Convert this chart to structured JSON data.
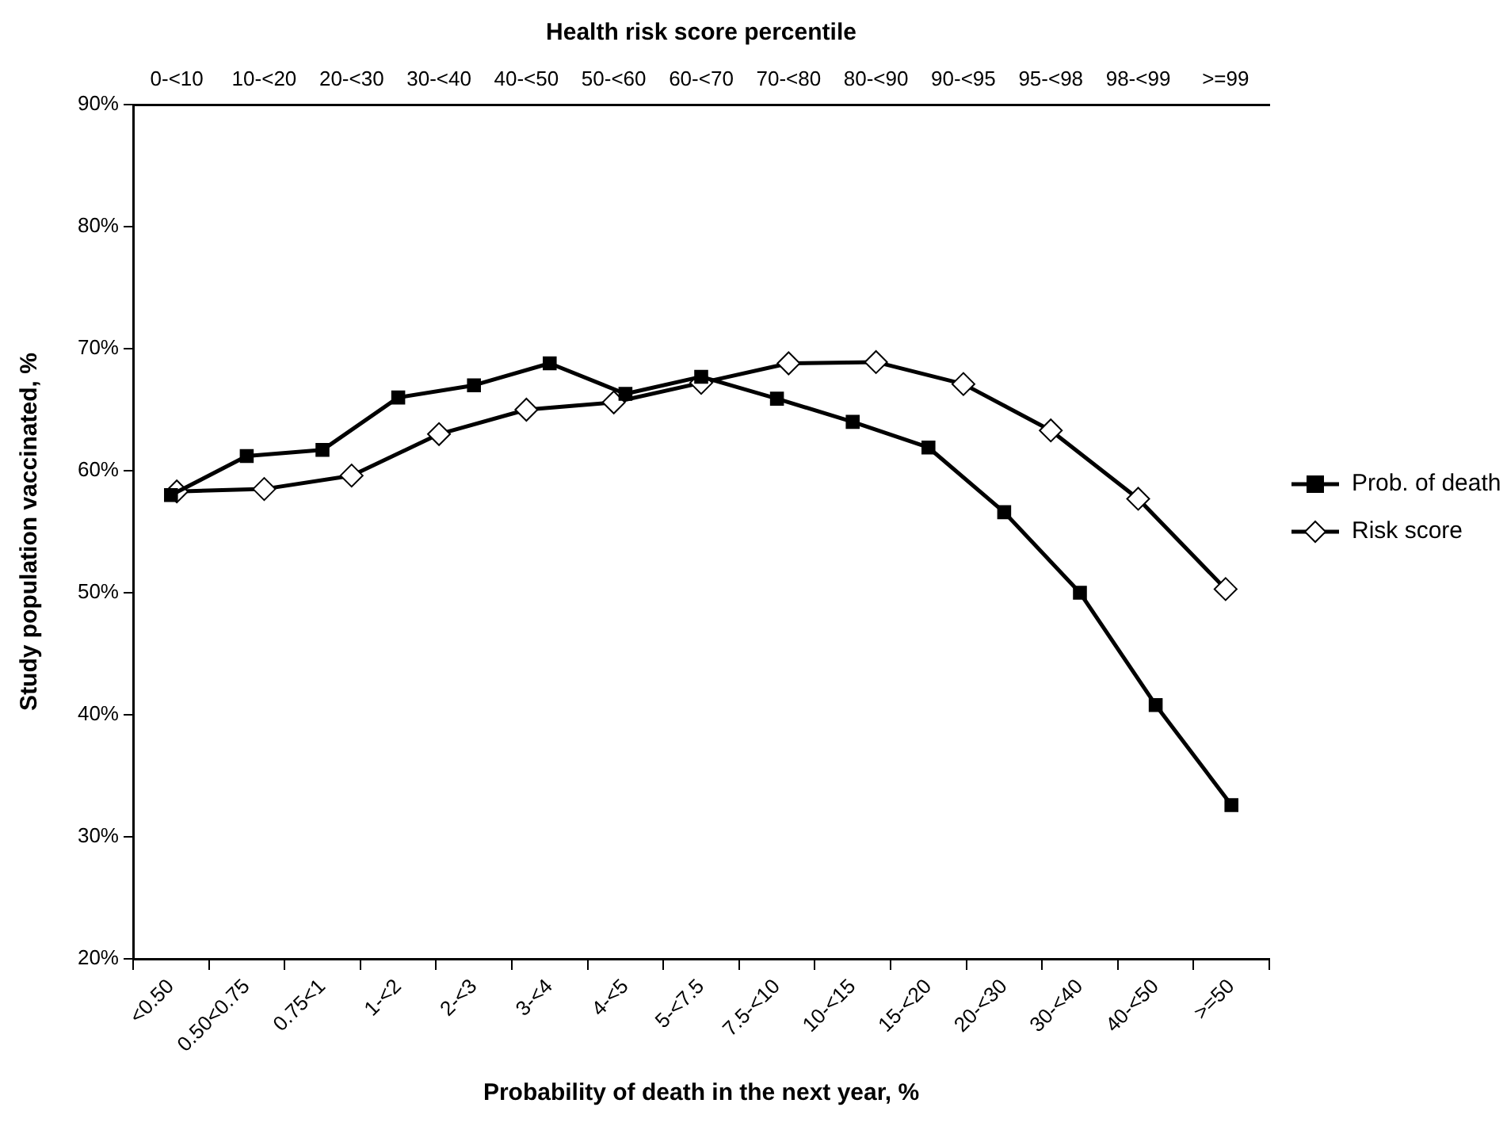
{
  "chart_data": [
    {
      "type": "line",
      "xlabel": "Probability of death in the next year, %",
      "ylabel": "Study population vaccinated, %",
      "categories": [
        "<0.50",
        "0.50<0.75",
        "0.75<1",
        "1-<2",
        "2-<3",
        "3-<4",
        "4-<5",
        "5-<7.5",
        "7.5-<10",
        "10-<15",
        "15-<20",
        "20-<30",
        "30-<40",
        "40-<50",
        ">=50"
      ],
      "series": [
        {
          "name": "Prob. of death",
          "color": "#000000",
          "marker": "square",
          "values": [
            58.0,
            61.2,
            61.7,
            66.0,
            67.0,
            68.8,
            66.3,
            67.7,
            65.9,
            64.0,
            61.9,
            56.6,
            50.0,
            40.8,
            32.6
          ]
        }
      ],
      "ylim": [
        20,
        90
      ],
      "yticks": [
        {
          "value": 20,
          "label": "20%"
        },
        {
          "value": 30,
          "label": "30%"
        },
        {
          "value": 40,
          "label": "40%"
        },
        {
          "value": 50,
          "label": "50%"
        },
        {
          "value": 60,
          "label": "60%"
        },
        {
          "value": 70,
          "label": "70%"
        },
        {
          "value": 80,
          "label": "80%"
        },
        {
          "value": 90,
          "label": "90%"
        }
      ],
      "grid": false,
      "legend": "right",
      "line_style": "solid"
    },
    {
      "type": "line",
      "x2label": "Health risk score percentile",
      "categories": [
        "0-<10",
        "10-<20",
        "20-<30",
        "30-<40",
        "40-<50",
        "50-<60",
        "60-<70",
        "70-<80",
        "80-<90",
        "90-<95",
        "95-<98",
        "98-<99",
        ">=99"
      ],
      "series": [
        {
          "name": "Risk score",
          "color": "#000000",
          "marker": "diamond",
          "values": [
            58.3,
            58.5,
            59.6,
            63.0,
            65.0,
            65.6,
            67.2,
            68.8,
            68.9,
            67.1,
            63.3,
            57.7,
            50.3
          ]
        }
      ],
      "ylim": [
        20,
        90
      ],
      "tick_labels": "x",
      "grid": false,
      "legend": "right",
      "line_style": "solid"
    }
  ]
}
